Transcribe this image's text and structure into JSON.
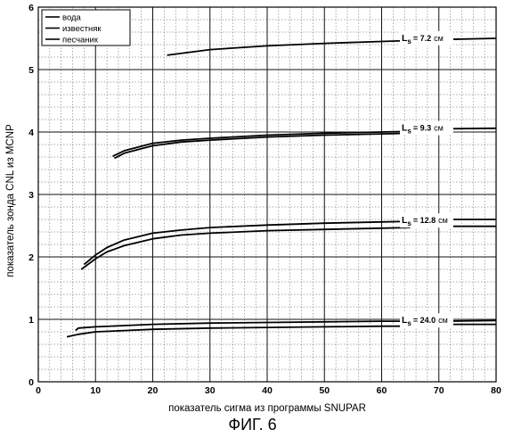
{
  "chart_data": {
    "type": "line",
    "title": "",
    "xlabel": "показатель сигма из программы SNUPAR",
    "ylabel": "показатель зонда CNL из MCNP",
    "xlim": [
      0,
      80
    ],
    "ylim": [
      0,
      6
    ],
    "xticks": [
      0,
      10,
      20,
      30,
      40,
      50,
      60,
      70,
      80
    ],
    "yticks": [
      0,
      1,
      2,
      3,
      4,
      5,
      6
    ],
    "grid": true,
    "legend_position": "top-left",
    "legend": [
      "вода",
      "известняк",
      "песчаник"
    ],
    "series": [
      {
        "group": "7.2",
        "x": [
          22.5,
          30,
          40,
          50,
          60,
          70,
          80
        ],
        "y": [
          5.23,
          5.32,
          5.38,
          5.42,
          5.45,
          5.48,
          5.5
        ]
      },
      {
        "group": "9.3",
        "x": [
          13,
          15,
          20,
          25,
          30,
          40,
          50,
          60,
          65
        ],
        "y": [
          3.61,
          3.7,
          3.82,
          3.87,
          3.9,
          3.95,
          3.98,
          4.0,
          4.01
        ]
      },
      {
        "group": "9.3",
        "x": [
          13.3,
          15,
          20,
          25,
          30,
          40,
          50,
          60,
          65
        ],
        "y": [
          3.58,
          3.66,
          3.78,
          3.84,
          3.87,
          3.92,
          3.95,
          3.97,
          3.98
        ]
      },
      {
        "group": "9.3",
        "x": [
          65,
          70,
          80
        ],
        "y": [
          4.04,
          4.05,
          4.06
        ]
      },
      {
        "group": "12.8",
        "x": [
          8,
          10,
          12,
          15,
          20,
          25,
          30,
          40,
          50,
          60,
          65
        ],
        "y": [
          1.88,
          2.03,
          2.15,
          2.27,
          2.38,
          2.43,
          2.47,
          2.51,
          2.54,
          2.56,
          2.57
        ]
      },
      {
        "group": "12.8",
        "x": [
          7.5,
          10,
          12,
          15,
          20,
          25,
          30,
          40,
          50,
          60,
          65
        ],
        "y": [
          1.8,
          1.97,
          2.08,
          2.18,
          2.29,
          2.35,
          2.38,
          2.42,
          2.44,
          2.46,
          2.47
        ]
      },
      {
        "group": "12.8",
        "x": [
          71,
          80
        ],
        "y": [
          2.6,
          2.6
        ]
      },
      {
        "group": "12.8",
        "x": [
          71,
          80
        ],
        "y": [
          2.49,
          2.49
        ]
      },
      {
        "group": "24.0",
        "x": [
          6.5,
          7,
          10,
          15,
          20,
          30,
          40,
          50,
          60,
          65
        ],
        "y": [
          0.82,
          0.86,
          0.88,
          0.9,
          0.92,
          0.94,
          0.95,
          0.96,
          0.97,
          0.97
        ]
      },
      {
        "group": "24.0",
        "x": [
          5,
          7,
          10,
          15,
          20,
          30,
          40,
          50,
          60,
          65
        ],
        "y": [
          0.72,
          0.76,
          0.8,
          0.82,
          0.84,
          0.86,
          0.87,
          0.88,
          0.89,
          0.89
        ]
      },
      {
        "group": "24.0",
        "x": [
          70,
          80
        ],
        "y": [
          0.97,
          0.98
        ]
      },
      {
        "group": "24.0",
        "x": [
          70,
          80
        ],
        "y": [
          0.92,
          0.92
        ]
      }
    ],
    "annotations": [
      {
        "text": "L",
        "sub": "s",
        "value": "= 7.2",
        "unit": "см",
        "x": 63.5,
        "y": 5.46
      },
      {
        "text": "L",
        "sub": "s",
        "value": "= 9.3",
        "unit": "см",
        "x": 63.5,
        "y": 4.02
      },
      {
        "text": "L",
        "sub": "s",
        "value": "= 12.8",
        "unit": "см",
        "x": 63.5,
        "y": 2.54
      },
      {
        "text": "L",
        "sub": "s",
        "value": "= 24.0",
        "unit": "см",
        "x": 63.5,
        "y": 0.94
      }
    ]
  },
  "caption": "ФИГ. 6"
}
